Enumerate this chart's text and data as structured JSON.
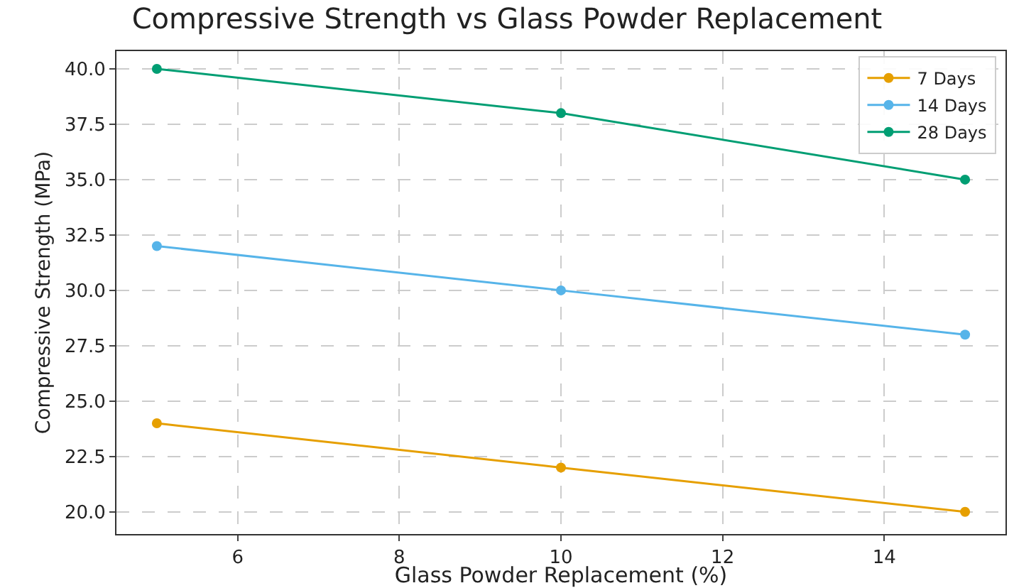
{
  "chart_data": {
    "type": "line",
    "title": "Compressive Strength vs Glass Powder Replacement",
    "xlabel": "Glass Powder Replacement (%)",
    "ylabel": "Compressive Strength (MPa)",
    "x": [
      5,
      10,
      15
    ],
    "series": [
      {
        "name": "7 Days",
        "color": "#e69f00",
        "values": [
          24,
          22,
          20
        ]
      },
      {
        "name": "14 Days",
        "color": "#56b4e9",
        "values": [
          32,
          30,
          28
        ]
      },
      {
        "name": "28 Days",
        "color": "#009e73",
        "values": [
          40,
          38,
          35
        ]
      }
    ],
    "xlim": [
      4.5,
      15.5
    ],
    "xticks": [
      6,
      8,
      10,
      12,
      14
    ],
    "ylim": [
      19,
      40.8
    ],
    "yticks": [
      {
        "value": 20,
        "label": "20.0"
      },
      {
        "value": 22.5,
        "label": "22.5"
      },
      {
        "value": 25,
        "label": "25.0"
      },
      {
        "value": 27.5,
        "label": "27.5"
      },
      {
        "value": 30,
        "label": "30.0"
      },
      {
        "value": 32.5,
        "label": "32.5"
      },
      {
        "value": 35,
        "label": "35.0"
      },
      {
        "value": 37.5,
        "label": "37.5"
      },
      {
        "value": 40,
        "label": "40.0"
      }
    ],
    "grid": true,
    "legend": "top right",
    "marker": "circle",
    "line_style": "solid"
  }
}
